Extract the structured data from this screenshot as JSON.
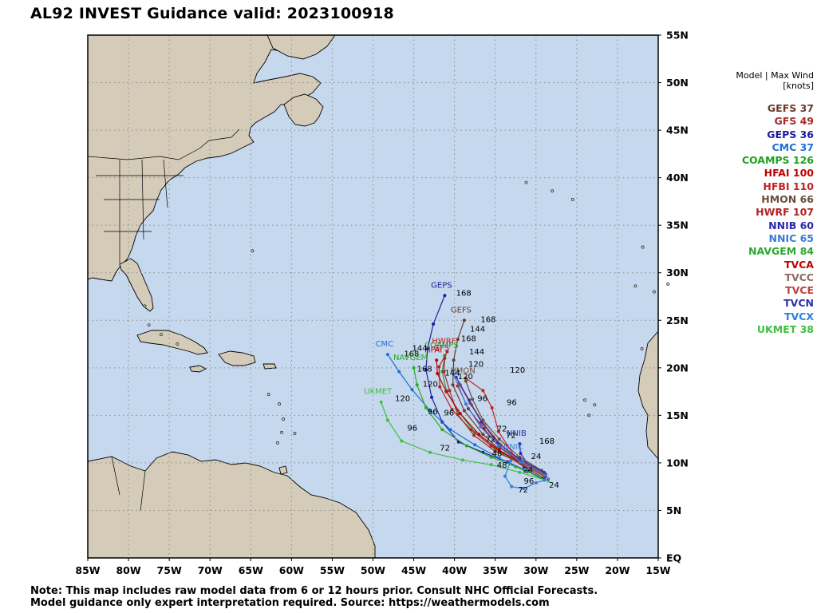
{
  "title": "AL92 INVEST Guidance valid: 2023100918",
  "colors": {
    "ocean": "#c5d8ed",
    "land": "#d5cbb9",
    "border": "#000000",
    "grid": "#8c8c8c"
  },
  "map": {
    "lon_range": [
      -85,
      -15
    ],
    "lat_range": [
      0,
      55
    ],
    "x_ticks": [
      "85W",
      "80W",
      "75W",
      "70W",
      "65W",
      "60W",
      "55W",
      "50W",
      "45W",
      "40W",
      "35W",
      "30W",
      "25W",
      "20W",
      "15W"
    ],
    "y_ticks": [
      "EQ",
      "5N",
      "10N",
      "15N",
      "20N",
      "25N",
      "30N",
      "35N",
      "40N",
      "45N",
      "50N",
      "55N"
    ]
  },
  "legend": {
    "header_line1": "Model | Max Wind",
    "header_line2": "[knots]",
    "items": [
      {
        "label": "GEFS 37",
        "color": "#6b3b2b"
      },
      {
        "label": "GFS 49",
        "color": "#a52a2a"
      },
      {
        "label": "GEPS 36",
        "color": "#1c1c9e"
      },
      {
        "label": "CMC 37",
        "color": "#1e6fd9"
      },
      {
        "label": "COAMPS 126",
        "color": "#1fa01f"
      },
      {
        "label": "HFAI 100",
        "color": "#c00000"
      },
      {
        "label": "HFBI 110",
        "color": "#c82020"
      },
      {
        "label": "HMON 66",
        "color": "#6b4e3c"
      },
      {
        "label": "HWRF 107",
        "color": "#b22222"
      },
      {
        "label": "NNIB 60",
        "color": "#2a2aa8"
      },
      {
        "label": "NNIC 65",
        "color": "#3a7bd5"
      },
      {
        "label": "NAVGEM 84",
        "color": "#2aa82a"
      },
      {
        "label": "TVCA",
        "color": "#c00000"
      },
      {
        "label": "TVCC",
        "color": "#8b6b5b"
      },
      {
        "label": "TVCE",
        "color": "#c04040"
      },
      {
        "label": "TVCN",
        "color": "#3030b0"
      },
      {
        "label": "TVCX",
        "color": "#2a80e0"
      },
      {
        "label": "UKMET 38",
        "color": "#40c040"
      }
    ]
  },
  "tracks": [
    {
      "model": "GEPS",
      "color": "#1c1c9e",
      "show_label": true,
      "start_label": "GEPS",
      "points": [
        [
          -29,
          8.3
        ],
        [
          -31,
          9.1
        ],
        [
          -33.5,
          10.1
        ],
        [
          -36.5,
          11.1
        ],
        [
          -39.5,
          12.2
        ],
        [
          -41.5,
          14.3
        ],
        [
          -42.8,
          16.9
        ],
        [
          -43.5,
          19.8
        ],
        [
          -43.3,
          22
        ],
        [
          -42.6,
          24.6
        ],
        [
          -41.2,
          27.6
        ]
      ],
      "hour_labels": [
        {
          "text": "168",
          "lon": -39.8,
          "lat": 27.6
        }
      ]
    },
    {
      "model": "GEFS",
      "color": "#6b3b2b",
      "show_label": true,
      "start_label": "GEFS",
      "points": [
        [
          -29,
          8.4
        ],
        [
          -31.5,
          9.6
        ],
        [
          -34,
          11
        ],
        [
          -36.5,
          13
        ],
        [
          -38.8,
          15.5
        ],
        [
          -40.2,
          18.2
        ],
        [
          -40.1,
          20.8
        ],
        [
          -39.6,
          23
        ],
        [
          -38.8,
          25
        ]
      ],
      "hour_labels": [
        {
          "text": "168",
          "lon": -36.8,
          "lat": 24.8
        }
      ]
    },
    {
      "model": "CMC",
      "color": "#1e6fd9",
      "show_label": true,
      "start_label": "CMC",
      "points": [
        [
          -29,
          8.2
        ],
        [
          -31.5,
          9.3
        ],
        [
          -34.5,
          10.5
        ],
        [
          -37.5,
          11.9
        ],
        [
          -40.5,
          13.5
        ],
        [
          -43,
          15.5
        ],
        [
          -45.2,
          17.7
        ],
        [
          -46.8,
          19.6
        ],
        [
          -48.2,
          21.4
        ]
      ],
      "hour_labels": [
        {
          "text": "168",
          "lon": -46.2,
          "lat": 21.2
        }
      ]
    },
    {
      "model": "UKMET",
      "color": "#40c040",
      "show_label": true,
      "start_label": "UKMET",
      "points": [
        [
          -28.5,
          8.1
        ],
        [
          -32,
          9.0
        ],
        [
          -35.5,
          9.8
        ],
        [
          -39,
          10.3
        ],
        [
          -43,
          11.1
        ],
        [
          -46.5,
          12.3
        ],
        [
          -48.2,
          14.5
        ],
        [
          -49,
          16.4
        ]
      ],
      "hour_labels": [
        {
          "text": "72",
          "lon": -41.8,
          "lat": 11.3
        },
        {
          "text": "96",
          "lon": -45.8,
          "lat": 13.4
        },
        {
          "text": "120",
          "lon": -47.3,
          "lat": 16.5
        }
      ]
    },
    {
      "model": "COAMPS",
      "color": "#1fa01f",
      "show_label": true,
      "start_label": "COAMPS",
      "points": [
        [
          -29,
          8.7
        ],
        [
          -32,
          10.0
        ],
        [
          -35,
          11.4
        ],
        [
          -37.5,
          13.2
        ],
        [
          -39.6,
          15.5
        ],
        [
          -41,
          17.6
        ],
        [
          -41.5,
          19.6
        ],
        [
          -41.2,
          21.3
        ]
      ],
      "hour_labels": []
    },
    {
      "model": "HWRF",
      "color": "#b22222",
      "show_label": true,
      "start_label": "HWRF",
      "points": [
        [
          -29.5,
          9
        ],
        [
          -32.5,
          10.3
        ],
        [
          -35.5,
          11.8
        ],
        [
          -38,
          13.5
        ],
        [
          -40.3,
          15.6
        ],
        [
          -41.8,
          18.0
        ],
        [
          -41.9,
          20.1
        ],
        [
          -40.9,
          21.7
        ]
      ],
      "hour_labels": []
    },
    {
      "model": "NAVGEM",
      "color": "#2aa82a",
      "show_label": true,
      "start_label": "NAVGEM",
      "points": [
        [
          -29.5,
          8.5
        ],
        [
          -32.5,
          9.6
        ],
        [
          -35.5,
          10.6
        ],
        [
          -38.5,
          11.8
        ],
        [
          -41.5,
          13.5
        ],
        [
          -43.5,
          15.8
        ],
        [
          -44.6,
          18.2
        ],
        [
          -45,
          20
        ]
      ],
      "hour_labels": []
    },
    {
      "model": "NNIB",
      "color": "#2a2aa8",
      "show_label": true,
      "start_label": "NNIB",
      "points": [
        [
          -29,
          8.9
        ],
        [
          -30.8,
          9.6
        ],
        [
          -31.9,
          11.0
        ],
        [
          -32,
          12.0
        ]
      ],
      "hour_labels": [
        {
          "text": "168",
          "lon": -29.6,
          "lat": 12.0
        }
      ]
    },
    {
      "model": "NNIC",
      "color": "#3a7bd5",
      "show_label": true,
      "start_label": "NNIC",
      "points": [
        [
          -28.5,
          8.3
        ],
        [
          -30,
          7.9
        ],
        [
          -31.5,
          7.3
        ],
        [
          -33,
          7.5
        ],
        [
          -33.8,
          8.6
        ],
        [
          -33.1,
          10.2
        ],
        [
          -32.4,
          10.6
        ]
      ],
      "hour_labels": [
        {
          "text": "96",
          "lon": -31.5,
          "lat": 7.8
        },
        {
          "text": "72",
          "lon": -32.2,
          "lat": 6.9
        },
        {
          "text": "48",
          "lon": -34.8,
          "lat": 9.5
        }
      ]
    },
    {
      "model": "GFS",
      "color": "#a52a2a",
      "show_label": true,
      "start_label": "GFS",
      "points": [
        [
          -29,
          8.6
        ],
        [
          -32,
          10.0
        ],
        [
          -35,
          11.2
        ],
        [
          -37.6,
          12.9
        ],
        [
          -39.6,
          15.1
        ],
        [
          -40.6,
          17.6
        ],
        [
          -41.3,
          19.6
        ],
        [
          -41.2,
          21.0
        ]
      ],
      "hour_labels": []
    },
    {
      "model": "HFAI",
      "color": "#c00000",
      "show_label": true,
      "start_label": "HFAI",
      "points": [
        [
          -28.8,
          8.6
        ],
        [
          -31.5,
          9.9
        ],
        [
          -34.5,
          11.3
        ],
        [
          -37,
          13
        ],
        [
          -39.3,
          15.2
        ],
        [
          -41,
          17.5
        ],
        [
          -42.1,
          19.4
        ],
        [
          -42.2,
          20.8
        ]
      ],
      "hour_labels": []
    },
    {
      "model": "HMON",
      "color": "#6b4e3c",
      "show_label": true,
      "start_label": "HMON",
      "points": [
        [
          -29.3,
          9.2
        ],
        [
          -32,
          10.6
        ],
        [
          -34.5,
          12.5
        ],
        [
          -36.5,
          14.5
        ],
        [
          -37.8,
          16.7
        ],
        [
          -38.6,
          18.6
        ]
      ],
      "hour_labels": []
    },
    {
      "model": "HFBI",
      "color": "#c82020",
      "show_label": false,
      "start_label": "",
      "points": [
        [
          -29,
          8.8
        ],
        [
          -32.5,
          10.5
        ],
        [
          -34.6,
          13.3
        ],
        [
          -35.4,
          15.8
        ],
        [
          -36.5,
          17.6
        ],
        [
          -38.6,
          18.9
        ]
      ],
      "hour_labels": []
    },
    {
      "model": "TVCA",
      "color": "#c00000",
      "show_label": false,
      "start_label": "",
      "points": [
        [
          -28.8,
          8.8
        ],
        [
          -31.8,
          10.0
        ],
        [
          -34.4,
          11.6
        ],
        [
          -36.4,
          13.6
        ],
        [
          -38.3,
          15.7
        ],
        [
          -39.6,
          18.1
        ]
      ],
      "hour_labels": []
    },
    {
      "model": "TVCC",
      "color": "#8b6b5b",
      "show_label": false,
      "start_label": "",
      "points": [
        [
          -29,
          8.7
        ],
        [
          -32,
          10.1
        ],
        [
          -34.3,
          11.9
        ],
        [
          -36.3,
          14
        ],
        [
          -37.9,
          16.1
        ],
        [
          -39.5,
          18.4
        ]
      ],
      "hour_labels": []
    },
    {
      "model": "TVCE",
      "color": "#c04040",
      "show_label": false,
      "start_label": "",
      "points": [
        [
          -29,
          8.9
        ],
        [
          -32,
          10.3
        ],
        [
          -34.5,
          12
        ],
        [
          -36.5,
          14.1
        ],
        [
          -38.1,
          16.3
        ],
        [
          -39.3,
          18.2
        ]
      ],
      "hour_labels": []
    },
    {
      "model": "TVCN",
      "color": "#3030b0",
      "show_label": false,
      "start_label": "",
      "points": [
        [
          -29,
          9.0
        ],
        [
          -32,
          10.4
        ],
        [
          -34.7,
          12.1
        ],
        [
          -36.7,
          14.3
        ],
        [
          -38.2,
          16.6
        ],
        [
          -39.8,
          19
        ]
      ],
      "hour_labels": []
    },
    {
      "model": "TVCX",
      "color": "#2a80e0",
      "show_label": false,
      "start_label": "",
      "points": [
        [
          -28.8,
          8.7
        ],
        [
          -31.8,
          10.1
        ],
        [
          -34.6,
          11.8
        ],
        [
          -36.8,
          13.8
        ],
        [
          -38.6,
          16.2
        ],
        [
          -40.1,
          19.3
        ]
      ],
      "hour_labels": []
    }
  ],
  "hour_labels_misc": [
    {
      "text": "144",
      "lon": -38.1,
      "lat": 23.8
    },
    {
      "text": "144",
      "lon": -38.2,
      "lat": 21.4
    },
    {
      "text": "120",
      "lon": -38.3,
      "lat": 20.1
    },
    {
      "text": "120",
      "lon": -33.2,
      "lat": 19.5
    },
    {
      "text": "120",
      "lon": -39.6,
      "lat": 18.8
    },
    {
      "text": "96",
      "lon": -33.6,
      "lat": 16.1
    },
    {
      "text": "96",
      "lon": -37.2,
      "lat": 16.5
    },
    {
      "text": "96",
      "lon": -41.3,
      "lat": 15.0
    },
    {
      "text": "72",
      "lon": -34.8,
      "lat": 13.3
    },
    {
      "text": "72",
      "lon": -36.2,
      "lat": 12.2
    },
    {
      "text": "72",
      "lon": -33.7,
      "lat": 12.6
    },
    {
      "text": "48",
      "lon": -35.4,
      "lat": 10.7
    },
    {
      "text": "24",
      "lon": -30.6,
      "lat": 10.4
    },
    {
      "text": "24",
      "lon": -28.4,
      "lat": 7.4
    },
    {
      "text": "24",
      "lon": -31.6,
      "lat": 9.0
    },
    {
      "text": "168",
      "lon": -44.6,
      "lat": 19.6
    },
    {
      "text": "168",
      "lon": -39.2,
      "lat": 22.8
    },
    {
      "text": "144",
      "lon": -41.2,
      "lat": 19.2
    },
    {
      "text": "144",
      "lon": -45.2,
      "lat": 21.8
    },
    {
      "text": "120",
      "lon": -43.9,
      "lat": 18.0
    },
    {
      "text": "96",
      "lon": -43.3,
      "lat": 15.1
    }
  ],
  "note_line1": "Note: This map includes raw model data from 6 or 12 hours prior. Consult NHC Official Forecasts.",
  "note_line2": "Model guidance only expert interpretation required. Source: https://weathermodels.com"
}
